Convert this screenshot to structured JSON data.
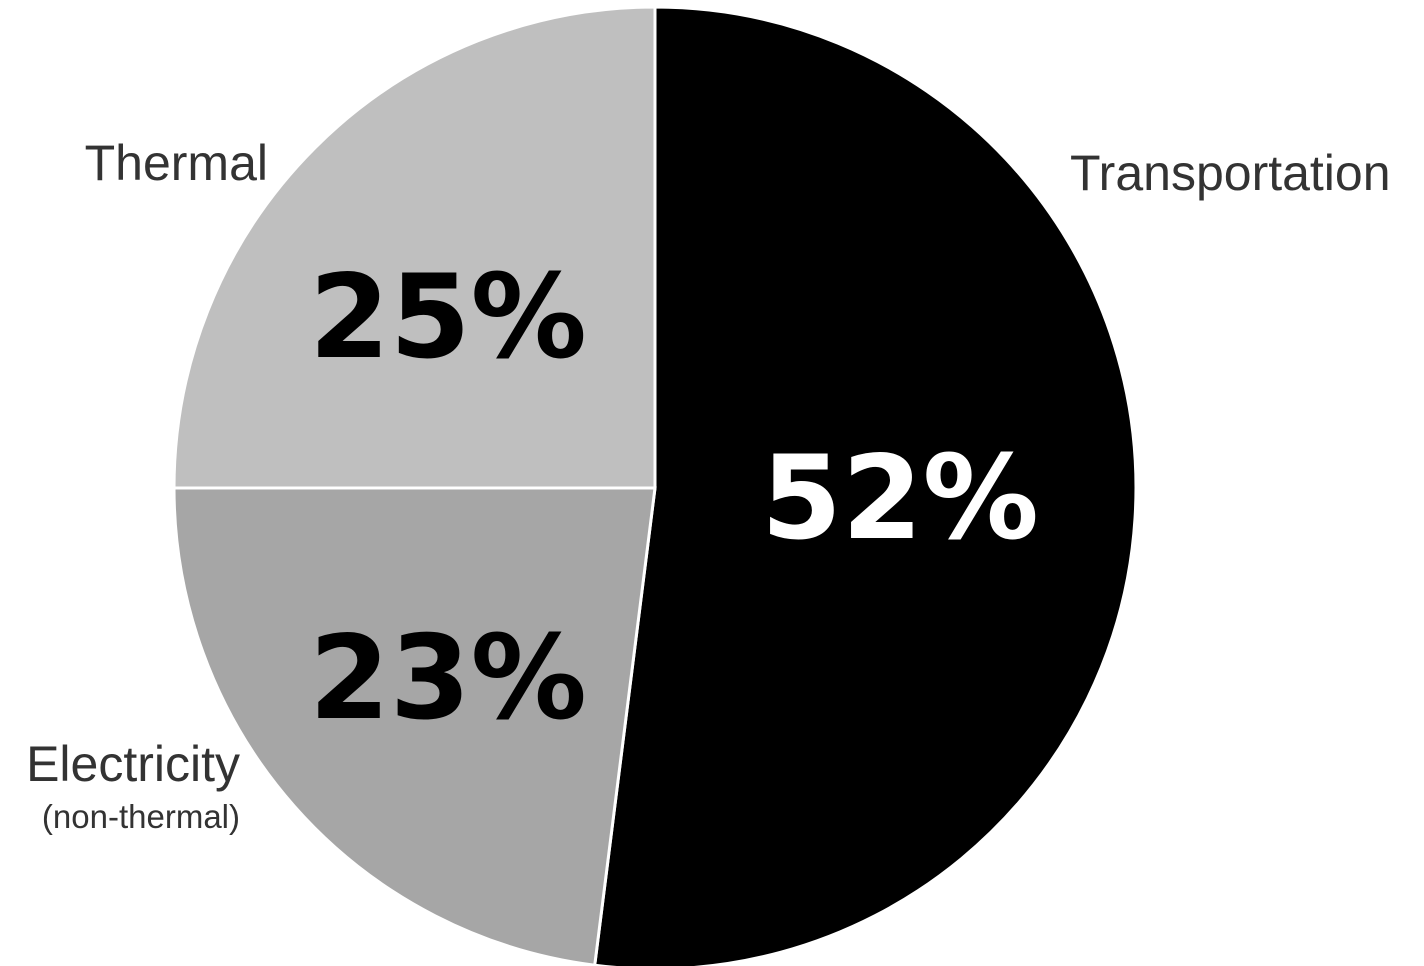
{
  "chart_data": {
    "type": "pie",
    "start_angle_deg": 0,
    "direction": "clockwise",
    "slices": [
      {
        "label": "Transportation",
        "sublabel": "",
        "value": 52,
        "value_label": "52%",
        "color": "#000000",
        "text_color": "#ffffff"
      },
      {
        "label": "Electricity",
        "sublabel": "(non-thermal)",
        "value": 23,
        "value_label": "23%",
        "color": "#a6a6a6",
        "text_color": "#000000"
      },
      {
        "label": "Thermal",
        "sublabel": "",
        "value": 25,
        "value_label": "25%",
        "color": "#bfbfbf",
        "text_color": "#000000"
      }
    ]
  }
}
